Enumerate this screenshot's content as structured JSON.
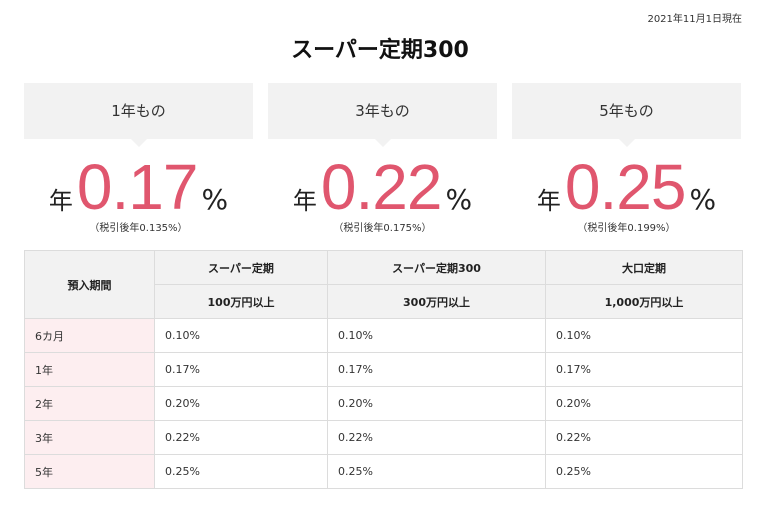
{
  "as_of": "2021年11月1日現在",
  "title": "スーパー定期300",
  "cards": [
    {
      "term": "1年もの",
      "prefix": "年",
      "rate": "0.17",
      "unit": "%",
      "note": "（税引後年0.135%）"
    },
    {
      "term": "3年もの",
      "prefix": "年",
      "rate": "0.22",
      "unit": "%",
      "note": "（税引後年0.175%）"
    },
    {
      "term": "5年もの",
      "prefix": "年",
      "rate": "0.25",
      "unit": "%",
      "note": "（税引後年0.199%）"
    }
  ],
  "table": {
    "period_header": "預入期間",
    "columns": [
      {
        "name": "スーパー定期",
        "min": "100万円以上"
      },
      {
        "name": "スーパー定期300",
        "min": "300万円以上"
      },
      {
        "name": "大口定期",
        "min": "1,000万円以上"
      }
    ],
    "rows": [
      {
        "period": "6カ月",
        "values": [
          "0.10%",
          "0.10%",
          "0.10%"
        ]
      },
      {
        "period": "1年",
        "values": [
          "0.17%",
          "0.17%",
          "0.17%"
        ]
      },
      {
        "period": "2年",
        "values": [
          "0.20%",
          "0.20%",
          "0.20%"
        ]
      },
      {
        "period": "3年",
        "values": [
          "0.22%",
          "0.22%",
          "0.22%"
        ]
      },
      {
        "period": "5年",
        "values": [
          "0.25%",
          "0.25%",
          "0.25%"
        ]
      }
    ]
  },
  "colors": {
    "accent": "#e0566e",
    "card_bg": "#f2f2f2",
    "period_bg": "#fdeef0"
  }
}
